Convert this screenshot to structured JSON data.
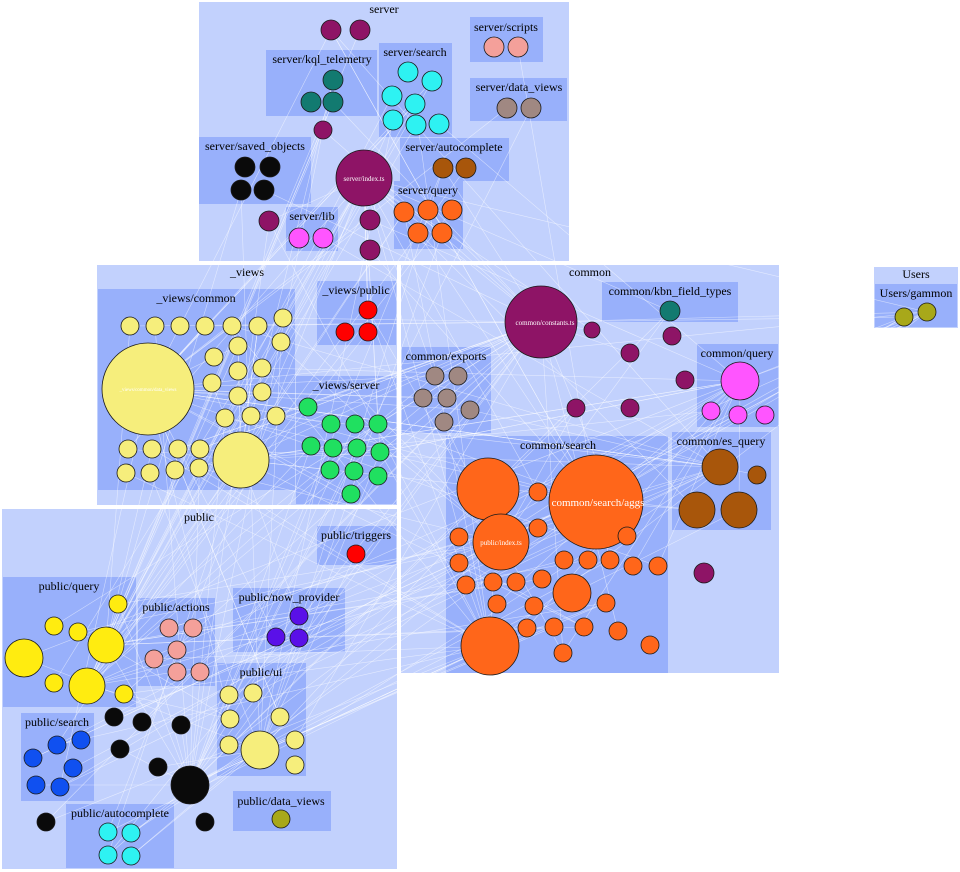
{
  "diagram": {
    "colors": {
      "outer_fill": "#c2d1fd",
      "inner_fill": "#98b0fb",
      "group_border": "#ffffff",
      "edge": "#ffffff",
      "node_stroke": "#1a1a1a"
    },
    "groups": {
      "server": "server",
      "server_scripts": "server/scripts",
      "server_kql_telemetry": "server/kql_telemetry",
      "server_search": "server/search",
      "server_data_views": "server/data_views",
      "server_saved_objects": "server/saved_objects",
      "server_autocomplete": "server/autocomplete",
      "server_query": "server/query",
      "server_lib": "server/lib",
      "views": "_views",
      "views_common": "_views/common",
      "views_public": "_views/public",
      "views_server": "_views/server",
      "common": "common",
      "common_kbn_field_types": "common/kbn_field_types",
      "common_exports": "common/exports",
      "common_query": "common/query",
      "common_search": "common/search",
      "common_es_query": "common/es_query",
      "users": "Users",
      "users_gammon": "Users/gammon",
      "public": "public",
      "public_triggers": "public/triggers",
      "public_query": "public/query",
      "public_actions": "public/actions",
      "public_now_provider": "public/now_provider",
      "public_ui": "public/ui",
      "public_search": "public/search",
      "public_data_views": "public/data_views",
      "public_autocomplete": "public/autocomplete"
    },
    "node_labels": {
      "server_index": "server/index.ts",
      "common_constants": "common/constants.ts",
      "common_search_aggs": "common/search/aggs",
      "public_index": "public/index.ts",
      "views_common_data_views": "_views/common/data_views"
    },
    "node_colors": {
      "server": "#8e1466",
      "salmon": "#f4a09a",
      "teal": "#127a70",
      "cyan": "#2ef2f2",
      "taupe": "#a08882",
      "black": "#0a0a0a",
      "brown": "#a8560b",
      "orange": "#ff661a",
      "pink": "#ff55ff",
      "yellow": "#f6ee7c",
      "red": "#ff0000",
      "green": "#20e060",
      "olive": "#a8a81a",
      "gold": "#ffec10",
      "violet": "#5a10e8",
      "blue": "#1050f0"
    }
  }
}
